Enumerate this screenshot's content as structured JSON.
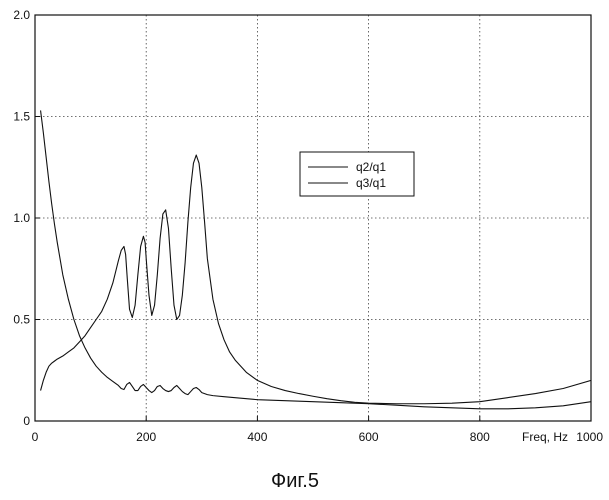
{
  "chart_data": {
    "type": "line",
    "xlim": [
      0,
      1000
    ],
    "ylim": [
      0,
      2.0
    ],
    "x_ticks": [
      0,
      200,
      400,
      600,
      800,
      1000
    ],
    "x_tick_labels": [
      "0",
      "200",
      "400",
      "600",
      "800",
      "1000"
    ],
    "y_ticks": [
      0,
      0.5,
      1.0,
      1.5,
      2.0
    ],
    "y_tick_labels": [
      "0",
      "0.5",
      "1.0",
      "1.5",
      "2.0"
    ],
    "xlabel": "Freq, Hz",
    "grid": true,
    "legend_position": "center-right",
    "series": [
      {
        "name": "q2/q1",
        "x": [
          10,
          15,
          20,
          25,
          30,
          35,
          40,
          50,
          60,
          70,
          80,
          90,
          100,
          110,
          120,
          130,
          140,
          150,
          155,
          160,
          163,
          166,
          170,
          175,
          180,
          185,
          190,
          195,
          198,
          200,
          205,
          210,
          215,
          220,
          225,
          230,
          235,
          240,
          245,
          250,
          255,
          260,
          265,
          270,
          275,
          280,
          285,
          290,
          295,
          300,
          305,
          310,
          320,
          330,
          340,
          350,
          360,
          380,
          400,
          425,
          450,
          475,
          500,
          525,
          550,
          575,
          600,
          650,
          700,
          750,
          800,
          850,
          900,
          950,
          1000
        ],
        "y": [
          0.15,
          0.2,
          0.24,
          0.27,
          0.285,
          0.295,
          0.305,
          0.32,
          0.34,
          0.36,
          0.39,
          0.42,
          0.46,
          0.5,
          0.54,
          0.6,
          0.68,
          0.79,
          0.84,
          0.86,
          0.82,
          0.7,
          0.55,
          0.51,
          0.57,
          0.72,
          0.86,
          0.91,
          0.88,
          0.8,
          0.62,
          0.52,
          0.57,
          0.72,
          0.9,
          1.02,
          1.04,
          0.95,
          0.75,
          0.57,
          0.5,
          0.52,
          0.62,
          0.78,
          0.98,
          1.15,
          1.27,
          1.31,
          1.27,
          1.15,
          0.98,
          0.8,
          0.6,
          0.48,
          0.4,
          0.34,
          0.3,
          0.24,
          0.2,
          0.17,
          0.15,
          0.135,
          0.122,
          0.11,
          0.1,
          0.092,
          0.088,
          0.085,
          0.085,
          0.088,
          0.095,
          0.115,
          0.135,
          0.16,
          0.2
        ]
      },
      {
        "name": "q3/q1",
        "x": [
          10,
          15,
          20,
          25,
          30,
          35,
          40,
          50,
          60,
          70,
          80,
          90,
          100,
          110,
          120,
          130,
          140,
          150,
          155,
          160,
          165,
          170,
          175,
          180,
          185,
          190,
          195,
          200,
          205,
          210,
          215,
          220,
          225,
          230,
          235,
          240,
          245,
          250,
          255,
          260,
          265,
          270,
          275,
          280,
          285,
          290,
          295,
          300,
          310,
          320,
          340,
          360,
          400,
          450,
          500,
          550,
          600,
          650,
          700,
          750,
          800,
          850,
          900,
          950,
          1000
        ],
        "y": [
          1.53,
          1.42,
          1.3,
          1.18,
          1.07,
          0.97,
          0.88,
          0.72,
          0.6,
          0.5,
          0.42,
          0.36,
          0.31,
          0.27,
          0.24,
          0.215,
          0.195,
          0.175,
          0.16,
          0.155,
          0.18,
          0.19,
          0.17,
          0.15,
          0.15,
          0.17,
          0.18,
          0.165,
          0.15,
          0.14,
          0.15,
          0.17,
          0.175,
          0.16,
          0.15,
          0.145,
          0.15,
          0.165,
          0.175,
          0.16,
          0.145,
          0.135,
          0.13,
          0.145,
          0.16,
          0.165,
          0.155,
          0.14,
          0.13,
          0.125,
          0.12,
          0.115,
          0.105,
          0.1,
          0.095,
          0.09,
          0.085,
          0.078,
          0.07,
          0.065,
          0.06,
          0.06,
          0.065,
          0.075,
          0.095
        ]
      }
    ]
  },
  "caption": "Фиг.5"
}
